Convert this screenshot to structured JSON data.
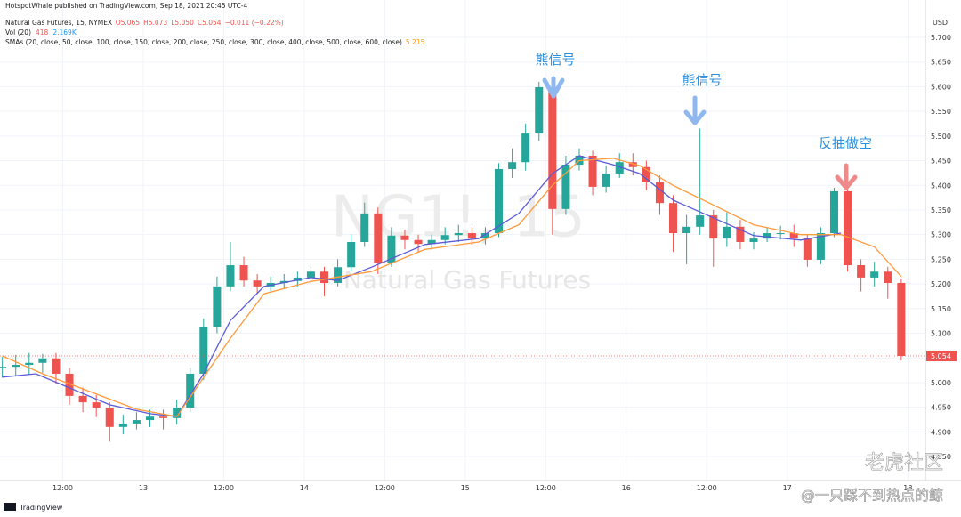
{
  "header": {
    "publisher": "HotspotWhale published on TradingView.com, Sep 18, 2021 20:45 UTC-4"
  },
  "chart_data": {
    "type": "candlestick",
    "title": "Natural Gas Futures, 15, NYMEX",
    "ohlc_labels": [
      "O5.065",
      "H5.073",
      "L5.050",
      "C5.054",
      "−0.011 (−0.22%)"
    ],
    "volume_legend": [
      "Vol (20)",
      "418",
      "2.169K"
    ],
    "sma_legend": [
      "SMAs (20, close, 50, close, 100, close, 150, close, 200, close, 250, close, 300, close, 400, close, 500, close, 600, close)",
      "5.215"
    ],
    "currency": "USD",
    "watermark": [
      "NG1!, 15",
      "Natural Gas Futures"
    ],
    "annotations": [
      "熊信号",
      "熊信号",
      "反抽做空"
    ],
    "up_color": "#26a69a",
    "down_color": "#ef5350",
    "xlim": [
      2.65,
      140.6
    ],
    "ylim": [
      4.8014,
      5.7397
    ],
    "grid": true,
    "xticks": [
      {
        "value": 12,
        "label": "12:00"
      },
      {
        "value": 24,
        "label": "13"
      },
      {
        "value": 36,
        "label": "12:00"
      },
      {
        "value": 48,
        "label": "14"
      },
      {
        "value": 60,
        "label": "12:00"
      },
      {
        "value": 72,
        "label": "15"
      },
      {
        "value": 84,
        "label": "12:00"
      },
      {
        "value": 96,
        "label": "16"
      },
      {
        "value": 108,
        "label": "12:00"
      },
      {
        "value": 120,
        "label": "17"
      },
      {
        "value": 138,
        "label": "18"
      }
    ],
    "yticks": [
      {
        "value": 5.7,
        "label": "5.700"
      },
      {
        "value": 5.65,
        "label": "5.650"
      },
      {
        "value": 5.6,
        "label": "5.600"
      },
      {
        "value": 5.55,
        "label": "5.550"
      },
      {
        "value": 5.5,
        "label": "5.500"
      },
      {
        "value": 5.45,
        "label": "5.450"
      },
      {
        "value": 5.4,
        "label": "5.400"
      },
      {
        "value": 5.35,
        "label": "5.350"
      },
      {
        "value": 5.3,
        "label": "5.300"
      },
      {
        "value": 5.25,
        "label": "5.250"
      },
      {
        "value": 5.2,
        "label": "5.200"
      },
      {
        "value": 5.15,
        "label": "5.150"
      },
      {
        "value": 5.1,
        "label": "5.100"
      },
      {
        "value": 5.05,
        "label": "5.050"
      },
      {
        "value": 5.0,
        "label": "5.000"
      },
      {
        "value": 4.95,
        "label": "4.950"
      },
      {
        "value": 4.9,
        "label": "4.900"
      },
      {
        "value": 4.85,
        "label": "4.850"
      }
    ],
    "x": [
      3,
      5,
      7,
      9,
      11,
      13,
      15,
      17,
      19,
      21,
      23,
      25,
      27,
      29,
      31,
      33,
      35,
      37,
      39,
      41,
      43,
      45,
      47,
      49,
      51,
      53,
      55,
      57,
      59,
      61,
      63,
      65,
      67,
      69,
      71,
      73,
      75,
      77,
      79,
      81,
      83,
      85,
      87,
      89,
      91,
      93,
      95,
      97,
      99,
      101,
      103,
      105,
      107,
      109,
      111,
      113,
      115,
      117,
      119,
      121,
      123,
      125,
      127,
      129,
      131,
      133,
      135,
      137
    ],
    "open": [
      5.03,
      5.032,
      5.036,
      5.04,
      5.049,
      5.018,
      4.973,
      4.96,
      4.949,
      4.91,
      4.917,
      4.924,
      4.931,
      4.928,
      4.949,
      5.018,
      5.112,
      5.195,
      5.238,
      5.207,
      5.195,
      5.202,
      5.206,
      5.213,
      5.225,
      5.202,
      5.234,
      5.285,
      5.343,
      5.243,
      5.298,
      5.289,
      5.281,
      5.289,
      5.299,
      5.303,
      5.292,
      5.303,
      5.433,
      5.447,
      5.505,
      5.599,
      5.352,
      5.442,
      5.46,
      5.397,
      5.424,
      5.447,
      5.437,
      5.406,
      5.364,
      5.303,
      5.316,
      5.339,
      5.292,
      5.316,
      5.285,
      5.292,
      5.303,
      5.303,
      5.292,
      5.249,
      5.303,
      5.388,
      5.238,
      5.213,
      5.225,
      5.202
    ],
    "high": [
      5.052,
      5.056,
      5.06,
      5.058,
      5.06,
      5.03,
      4.99,
      4.975,
      4.96,
      4.935,
      4.94,
      4.945,
      4.945,
      4.965,
      5.03,
      5.13,
      5.215,
      5.285,
      5.255,
      5.22,
      5.215,
      5.22,
      5.225,
      5.24,
      5.235,
      5.25,
      5.3,
      5.365,
      5.355,
      5.315,
      5.31,
      5.3,
      5.3,
      5.315,
      5.32,
      5.315,
      5.315,
      5.445,
      5.475,
      5.525,
      5.61,
      5.605,
      5.46,
      5.475,
      5.47,
      5.44,
      5.465,
      5.465,
      5.45,
      5.42,
      5.38,
      5.34,
      5.515,
      5.35,
      5.345,
      5.33,
      5.305,
      5.315,
      5.318,
      5.32,
      5.3,
      5.315,
      5.395,
      5.395,
      5.25,
      5.245,
      5.235,
      5.21
    ],
    "low": [
      5.01,
      5.012,
      5.016,
      5.02,
      4.998,
      4.955,
      4.94,
      4.93,
      4.88,
      4.895,
      4.905,
      4.91,
      4.905,
      4.915,
      4.94,
      5.005,
      5.1,
      5.185,
      5.195,
      5.18,
      5.185,
      5.19,
      5.195,
      5.2,
      5.175,
      5.195,
      5.225,
      5.275,
      5.22,
      5.235,
      5.27,
      5.265,
      5.27,
      5.28,
      5.285,
      5.28,
      5.28,
      5.295,
      5.415,
      5.43,
      5.49,
      5.3,
      5.34,
      5.43,
      5.38,
      5.385,
      5.415,
      5.42,
      5.39,
      5.34,
      5.265,
      5.24,
      5.3,
      5.235,
      5.275,
      5.27,
      5.27,
      5.285,
      5.29,
      5.275,
      5.235,
      5.24,
      5.295,
      5.225,
      5.185,
      5.195,
      5.17,
      5.045
    ],
    "close": [
      5.032,
      5.036,
      5.04,
      5.049,
      5.018,
      4.973,
      4.96,
      4.949,
      4.91,
      4.917,
      4.924,
      4.931,
      4.928,
      4.949,
      5.018,
      5.112,
      5.195,
      5.238,
      5.207,
      5.195,
      5.202,
      5.206,
      5.213,
      5.225,
      5.202,
      5.234,
      5.285,
      5.343,
      5.243,
      5.298,
      5.289,
      5.281,
      5.289,
      5.299,
      5.303,
      5.292,
      5.303,
      5.433,
      5.447,
      5.505,
      5.599,
      5.352,
      5.442,
      5.46,
      5.397,
      5.424,
      5.447,
      5.437,
      5.406,
      5.364,
      5.303,
      5.316,
      5.339,
      5.292,
      5.316,
      5.285,
      5.292,
      5.303,
      5.303,
      5.292,
      5.249,
      5.303,
      5.388,
      5.238,
      5.213,
      5.225,
      5.202,
      5.054
    ],
    "lines": [
      {
        "color": "#5b5bd6",
        "x": [
          3,
          8,
          19,
          25,
          29,
          33,
          37,
          42,
          49,
          53,
          58,
          66,
          74,
          80,
          85,
          89,
          94,
          98,
          103,
          109,
          115,
          122,
          128
        ],
        "values": [
          5.011,
          5.018,
          4.955,
          4.937,
          4.931,
          5.018,
          5.126,
          5.195,
          5.213,
          5.207,
          5.234,
          5.28,
          5.292,
          5.343,
          5.424,
          5.46,
          5.442,
          5.424,
          5.37,
          5.334,
          5.298,
          5.289,
          5.303
        ]
      },
      {
        "color": "#ff9a3c",
        "x": [
          3,
          9,
          16,
          23,
          29,
          37,
          42,
          49,
          58,
          66,
          74,
          80,
          85,
          89,
          94,
          98,
          103,
          109,
          115,
          122,
          128,
          133,
          137
        ],
        "values": [
          5.054,
          5.018,
          4.982,
          4.946,
          4.931,
          5.09,
          5.18,
          5.205,
          5.225,
          5.27,
          5.285,
          5.32,
          5.4,
          5.45,
          5.455,
          5.44,
          5.4,
          5.36,
          5.32,
          5.3,
          5.3,
          5.275,
          5.215
        ]
      }
    ]
  },
  "footer": {
    "brand": "TradingView",
    "credit": [
      "老虎社区",
      "@一只踩不到热点的鲸"
    ]
  }
}
